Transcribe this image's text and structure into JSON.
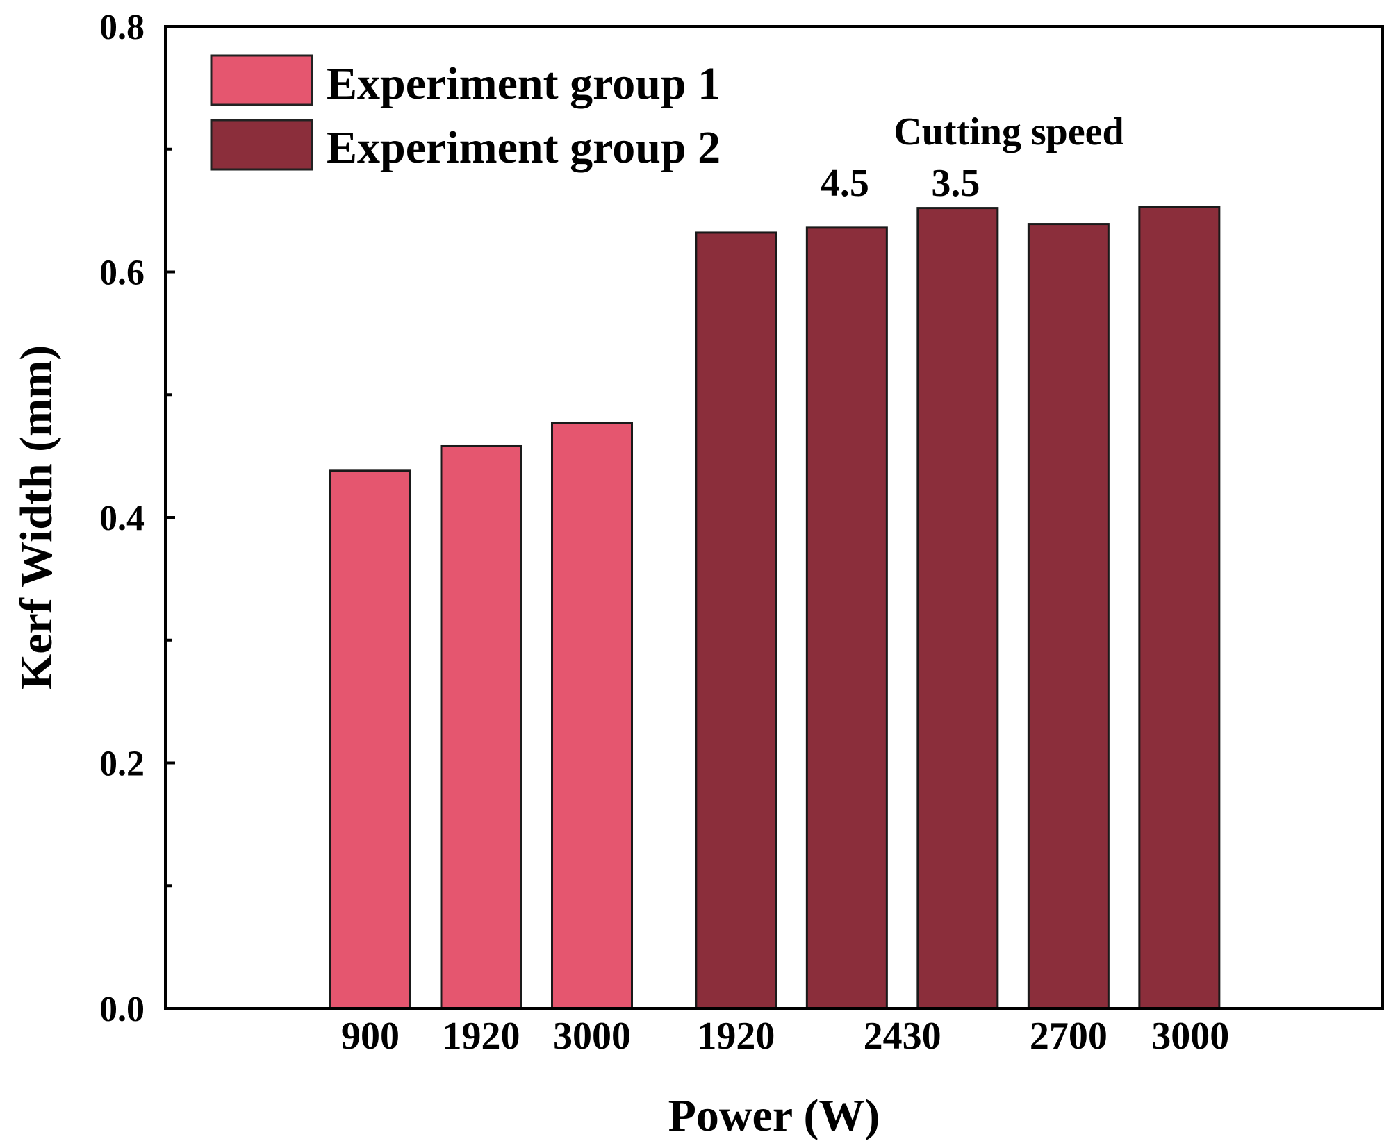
{
  "chart_data": {
    "type": "bar",
    "xlabel": "Power (W)",
    "ylabel": "Kerf Width (mm)",
    "ylim": [
      0,
      0.8
    ],
    "yticks": [
      "0.0",
      "0.2",
      "0.4",
      "0.6",
      "0.8"
    ],
    "ytick_values": [
      0,
      0.2,
      0.4,
      0.6,
      0.8
    ],
    "yminor_values": [
      0.1,
      0.3,
      0.5,
      0.7
    ],
    "legend_position": "top-left",
    "series": [
      {
        "name": "Experiment group 1",
        "color": "#E5566F",
        "slots": [
          0,
          1,
          2
        ],
        "values": [
          0.438,
          0.458,
          0.477
        ]
      },
      {
        "name": "Experiment group 2",
        "color": "#8B2E3B",
        "slots": [
          3.3,
          4.3,
          5.3,
          6.3,
          7.3
        ],
        "values": [
          0.632,
          0.636,
          0.652,
          0.639,
          0.653
        ]
      }
    ],
    "xtick_labels": [
      {
        "label": "900",
        "slot": 0
      },
      {
        "label": "1920",
        "slot": 1
      },
      {
        "label": "3000",
        "slot": 2
      },
      {
        "label": "1920",
        "slot": 3.3
      },
      {
        "label": "2430",
        "slot": 4.8
      },
      {
        "label": "2700",
        "slot": 6.3
      },
      {
        "label": "3000",
        "slot": 7.4
      }
    ],
    "annotations": {
      "title": "Cutting speed",
      "speeds": [
        {
          "label": "4.5",
          "slot": 4.3
        },
        {
          "label": "3.5",
          "slot": 5.3
        }
      ]
    }
  }
}
